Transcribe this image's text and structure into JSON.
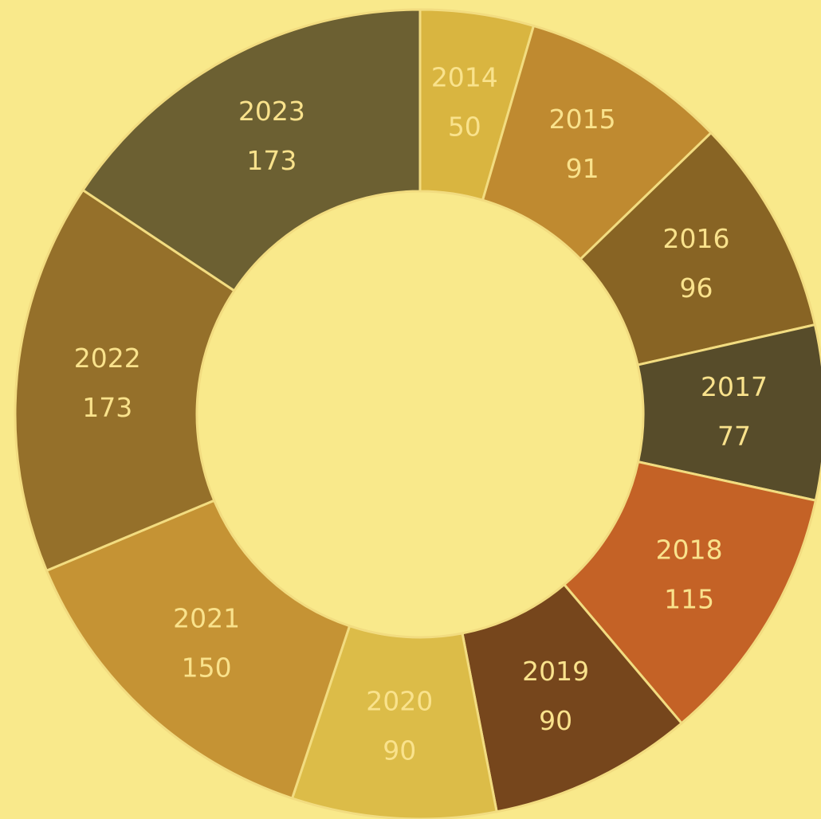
{
  "chart_data": {
    "type": "donut",
    "categories": [
      "2014",
      "2015",
      "2016",
      "2017",
      "2018",
      "2019",
      "2020",
      "2021",
      "2022",
      "2023"
    ],
    "values": [
      50,
      91,
      96,
      77,
      115,
      90,
      90,
      150,
      173,
      173
    ],
    "colors": [
      "#d9b540",
      "#bf8a30",
      "#886424",
      "#574c2a",
      "#c46226",
      "#76461c",
      "#dcbc48",
      "#c59334",
      "#95702a",
      "#6c6032"
    ]
  }
}
